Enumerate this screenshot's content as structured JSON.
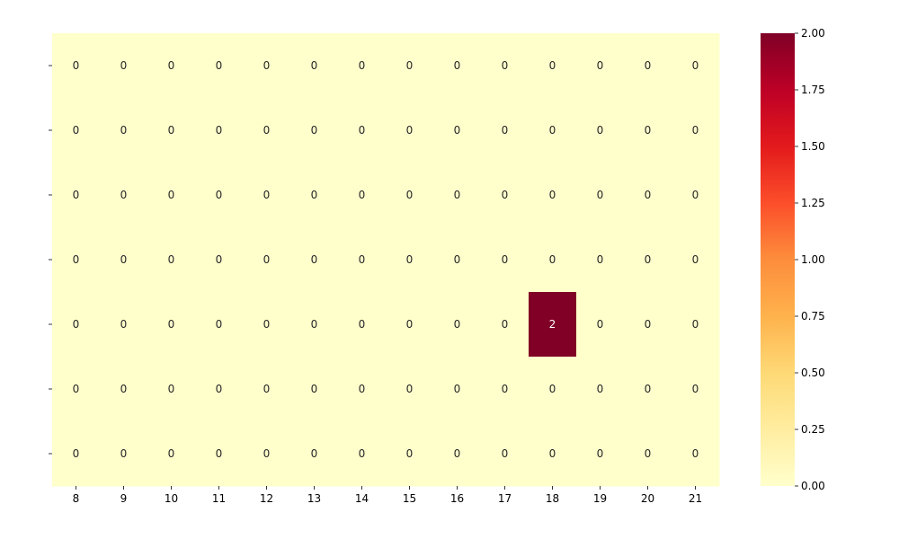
{
  "chart_data": {
    "type": "heatmap",
    "title": "",
    "xlabel": "",
    "ylabel": "",
    "x": [
      8,
      9,
      10,
      11,
      12,
      13,
      14,
      15,
      16,
      17,
      18,
      19,
      20,
      21
    ],
    "y": [
      "",
      "",
      "",
      "",
      "",
      "",
      ""
    ],
    "values": [
      [
        0,
        0,
        0,
        0,
        0,
        0,
        0,
        0,
        0,
        0,
        0,
        0,
        0,
        0
      ],
      [
        0,
        0,
        0,
        0,
        0,
        0,
        0,
        0,
        0,
        0,
        0,
        0,
        0,
        0
      ],
      [
        0,
        0,
        0,
        0,
        0,
        0,
        0,
        0,
        0,
        0,
        0,
        0,
        0,
        0
      ],
      [
        0,
        0,
        0,
        0,
        0,
        0,
        0,
        0,
        0,
        0,
        0,
        0,
        0,
        0
      ],
      [
        0,
        0,
        0,
        0,
        0,
        0,
        0,
        0,
        0,
        0,
        2,
        0,
        0,
        0
      ],
      [
        0,
        0,
        0,
        0,
        0,
        0,
        0,
        0,
        0,
        0,
        0,
        0,
        0,
        0
      ],
      [
        0,
        0,
        0,
        0,
        0,
        0,
        0,
        0,
        0,
        0,
        0,
        0,
        0,
        0
      ]
    ],
    "colormap": "YlOrRd",
    "colors": {
      "low": "#ffffcc",
      "high": "#800026"
    },
    "colorbar": {
      "range": [
        0.0,
        2.0
      ],
      "ticks": [
        "0.00",
        "0.25",
        "0.50",
        "0.75",
        "1.00",
        "1.25",
        "1.50",
        "1.75",
        "2.00"
      ]
    },
    "grid": false,
    "legend": "colorbar-right"
  }
}
